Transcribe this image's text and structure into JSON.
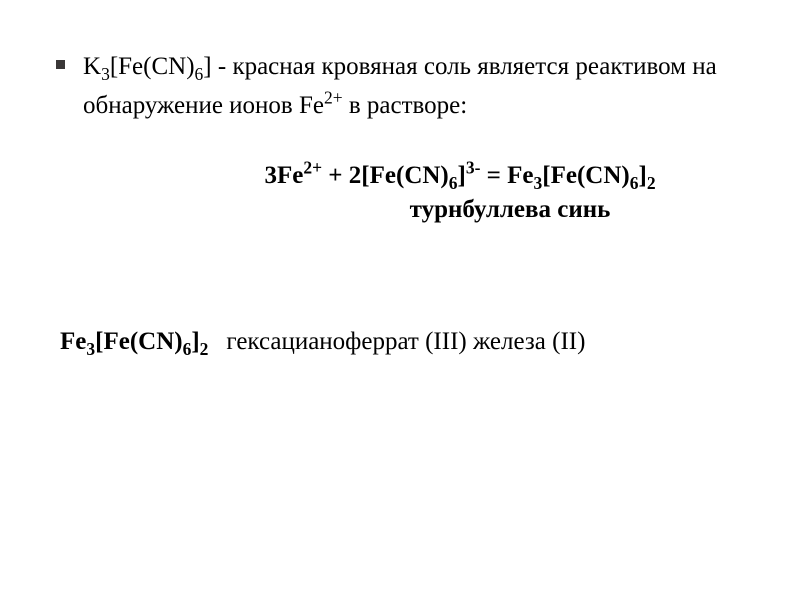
{
  "colors": {
    "background": "#ffffff",
    "text": "#000000",
    "bullet": "#3a3737"
  },
  "typography": {
    "font_family": "Times New Roman",
    "base_fontsize_pt": 25,
    "line_height": 1.55
  },
  "bullet": {
    "formula_k": "K",
    "formula_k_sub": "3",
    "formula_fe": "[Fe(CN)",
    "formula_fe_sub": "6",
    "formula_close": "]",
    "dash": " - ",
    "desc_part1": "красная кровяная соль является реактивом на обнаружение ионов Fe",
    "ion_sup": "2+",
    "desc_part2": " в растворе:"
  },
  "equation": {
    "coef1": "3Fe",
    "sup1": "2+",
    "plus": " + ",
    "coef2": "2[Fe(CN)",
    "sub2": "6",
    "close2": "]",
    "sup2": "3-",
    "equals": " = ",
    "prod1": "Fe",
    "prod1_sub": "3",
    "prod2": "[Fe(CN)",
    "prod2_sub": "6",
    "prod2_close": "]",
    "prod2_sub2": "2"
  },
  "product_label": "турнбуллева синь",
  "bottom": {
    "f1": "Fe",
    "f1_sub": "3",
    "f2": "[Fe(CN)",
    "f2_sub": "6",
    "f2_close": "]",
    "f2_sub2": "2",
    "name": "гексацианоферрат (III) железа (II)"
  }
}
